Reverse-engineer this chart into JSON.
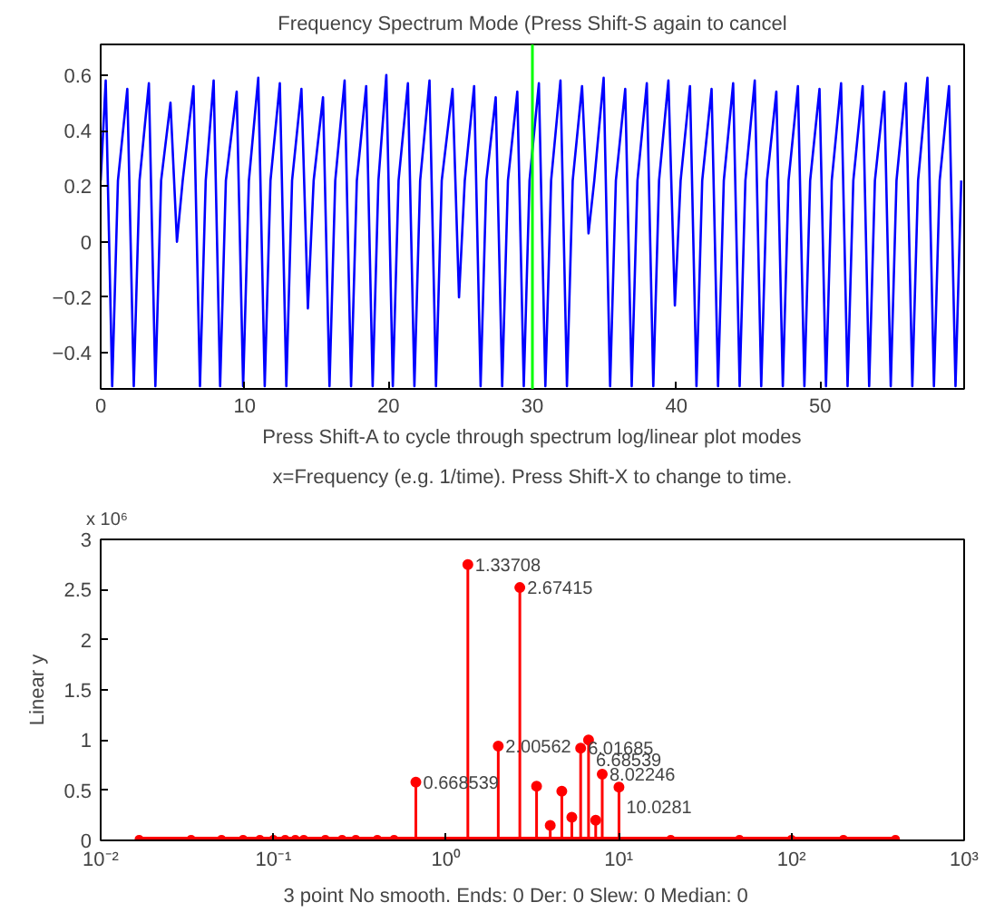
{
  "chart_data": [
    {
      "type": "line",
      "title": "Frequency Spectrum Mode (Press Shift-S again to cancel",
      "xlabel": "Press Shift-A to cycle through spectrum log/linear plot modes",
      "xlim": [
        0,
        60
      ],
      "ylim": [
        -0.53,
        0.71
      ],
      "xticks": [
        0,
        10,
        20,
        30,
        40,
        50
      ],
      "yticks": [
        -0.4,
        -0.2,
        0,
        0.2,
        0.4,
        0.6
      ],
      "grid": false,
      "ref_lines": [
        {
          "axis": "x",
          "value": 30,
          "color": "#00ff00"
        }
      ],
      "series": [
        {
          "color": "#0000ff",
          "x": [
            0,
            0.35,
            0.8,
            1.2,
            1.85,
            2.3,
            2.7,
            3.35,
            3.8,
            4.2,
            4.85,
            5.3,
            5.7,
            6.45,
            6.9,
            7.3,
            7.85,
            8.3,
            8.7,
            9.45,
            9.9,
            10.3,
            10.95,
            11.4,
            11.8,
            12.45,
            12.9,
            13.3,
            13.95,
            14.4,
            14.8,
            15.45,
            15.9,
            16.3,
            16.95,
            17.4,
            17.8,
            18.45,
            18.9,
            19.3,
            19.85,
            20.3,
            20.7,
            21.35,
            21.8,
            22.2,
            22.85,
            23.3,
            23.7,
            24.45,
            24.9,
            25.3,
            25.95,
            26.4,
            26.8,
            27.45,
            27.9,
            28.3,
            28.95,
            29.4,
            29.8,
            30.45,
            30.9,
            31.3,
            31.95,
            32.4,
            32.8,
            33.45,
            33.9,
            34.3,
            34.95,
            35.4,
            35.8,
            36.45,
            36.9,
            37.3,
            37.95,
            38.4,
            38.8,
            39.45,
            39.9,
            40.3,
            40.95,
            41.4,
            41.8,
            42.45,
            42.9,
            43.3,
            43.95,
            44.4,
            44.8,
            45.45,
            45.9,
            46.3,
            46.95,
            47.4,
            47.8,
            48.45,
            48.9,
            49.3,
            49.95,
            50.4,
            50.8,
            51.45,
            51.9,
            52.3,
            52.95,
            53.4,
            53.8,
            54.45,
            54.9,
            55.3,
            55.95,
            56.4,
            56.8,
            57.45,
            57.9,
            58.3,
            58.95,
            59.4,
            59.8
          ],
          "values": [
            0.22,
            0.58,
            -0.52,
            0.22,
            0.55,
            -0.52,
            0.22,
            0.57,
            -0.52,
            0.22,
            0.5,
            0.0,
            0.22,
            0.56,
            -0.52,
            0.22,
            0.58,
            -0.52,
            0.22,
            0.54,
            -0.52,
            0.22,
            0.59,
            -0.52,
            0.22,
            0.57,
            -0.52,
            0.22,
            0.55,
            -0.24,
            0.22,
            0.52,
            -0.52,
            0.22,
            0.58,
            -0.52,
            0.22,
            0.56,
            -0.52,
            0.22,
            0.6,
            -0.52,
            0.22,
            0.57,
            -0.52,
            0.22,
            0.58,
            -0.52,
            0.22,
            0.55,
            -0.2,
            0.22,
            0.56,
            -0.52,
            0.22,
            0.52,
            -0.52,
            0.22,
            0.54,
            -0.52,
            0.22,
            0.57,
            -0.52,
            0.22,
            0.58,
            -0.52,
            0.22,
            0.56,
            0.03,
            0.22,
            0.59,
            -0.52,
            0.22,
            0.55,
            -0.52,
            0.22,
            0.57,
            -0.52,
            0.22,
            0.58,
            -0.23,
            0.22,
            0.56,
            -0.52,
            0.22,
            0.55,
            -0.52,
            0.22,
            0.57,
            -0.52,
            0.22,
            0.58,
            -0.52,
            0.22,
            0.54,
            -0.52,
            0.22,
            0.56,
            -0.52,
            0.22,
            0.55,
            -0.52,
            0.22,
            0.57,
            -0.52,
            0.22,
            0.56,
            -0.52,
            0.22,
            0.54,
            -0.52,
            0.22,
            0.57,
            -0.52,
            0.22,
            0.59,
            -0.52,
            0.22,
            0.56,
            -0.52,
            0.22
          ]
        }
      ]
    },
    {
      "type": "lollipop",
      "title": "x=Frequency (e.g. 1/time). Press Shift-X to change to time.",
      "ylabel": "Linear y",
      "xlabel": "3 point No smooth. Ends: 0   Der: 0   Slew: 0   Median: 0",
      "log": "x",
      "xlim": [
        0.01,
        1000
      ],
      "ylim": [
        0,
        3
      ],
      "xticks": [
        {
          "value": 0.01,
          "label": "10⁻²"
        },
        {
          "value": 0.1,
          "label": "10⁻¹"
        },
        {
          "value": 1,
          "label": "10⁰"
        },
        {
          "value": 10,
          "label": "10¹"
        },
        {
          "value": 100,
          "label": "10²"
        },
        {
          "value": 1000,
          "label": "10³"
        }
      ],
      "yticks": [
        0,
        0.5,
        1,
        1.5,
        2,
        2.5,
        3
      ],
      "grid": false,
      "marker": "circle",
      "annotations": [
        "x 10⁶",
        {
          "text": "0.668539",
          "x": 0.668539,
          "y": 0.58
        },
        {
          "text": "1.33708",
          "x": 1.33708,
          "y": 2.75
        },
        {
          "text": "2.00562",
          "x": 2.00562,
          "y": 0.94
        },
        {
          "text": "2.67415",
          "x": 2.67415,
          "y": 2.52
        },
        {
          "text": "6.01685",
          "x": 6.01685,
          "y": 0.92
        },
        {
          "text": "6.68539",
          "x": 6.68539,
          "y": 1.0
        },
        {
          "text": "8.02246",
          "x": 8.02246,
          "y": 0.66
        },
        {
          "text": "10.0281",
          "x": 10.0281,
          "y": 0.53
        }
      ],
      "series": [
        {
          "color": "#ff0000",
          "x": [
            0.668539,
            1.33708,
            2.00562,
            2.67415,
            3.34269,
            4.01123,
            4.67977,
            5.34831,
            6.01685,
            6.68539,
            7.35393,
            8.02246,
            10.0281
          ],
          "values": [
            0.58,
            2.75,
            0.94,
            2.52,
            0.54,
            0.15,
            0.49,
            0.23,
            0.92,
            1.0,
            0.2,
            0.66,
            0.53
          ]
        },
        {
          "type": "line",
          "color": "#ff0000",
          "x": [
            0.0167,
            0.0334,
            0.0501,
            0.0668,
            0.0835,
            0.1,
            0.117,
            0.134,
            0.15,
            0.2,
            0.25,
            0.3,
            0.4,
            0.5,
            20,
            50,
            100,
            200,
            400
          ],
          "values": [
            0.01,
            0.01,
            0.01,
            0.01,
            0.01,
            0.01,
            0.01,
            0.01,
            0.01,
            0.01,
            0.01,
            0.01,
            0.01,
            0.01,
            0.01,
            0.01,
            0.01,
            0.01,
            0.01
          ]
        }
      ]
    }
  ]
}
